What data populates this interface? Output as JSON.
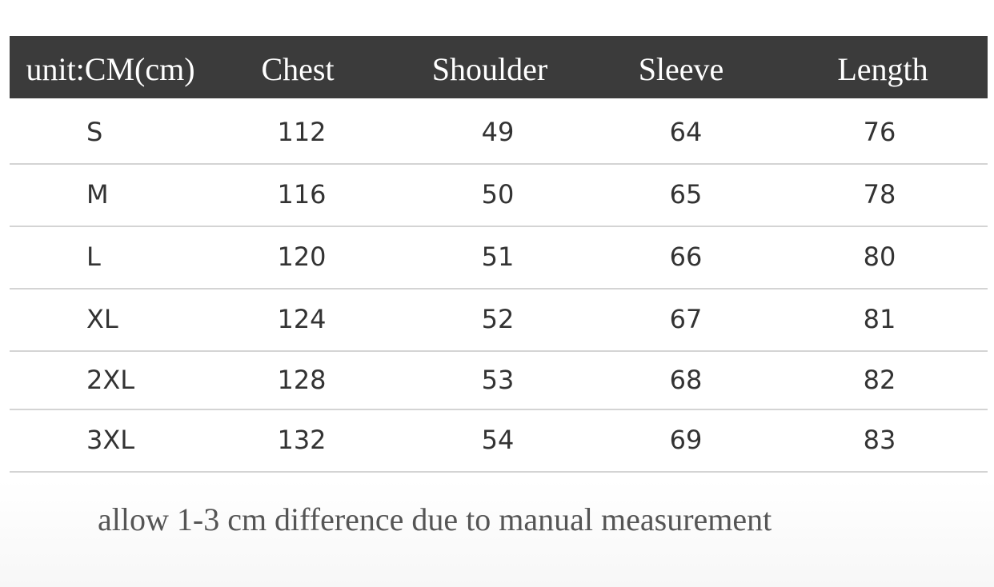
{
  "table": {
    "header": [
      "unit:CM(cm)",
      "Chest",
      "Shoulder",
      "Sleeve",
      "Length"
    ],
    "rows": [
      [
        "S",
        112,
        49,
        64,
        76
      ],
      [
        "M",
        116,
        50,
        65,
        78
      ],
      [
        "L",
        120,
        51,
        66,
        80
      ],
      [
        "XL",
        124,
        52,
        67,
        81
      ],
      [
        "2XL",
        128,
        53,
        68,
        82
      ],
      [
        "3XL",
        132,
        54,
        69,
        83
      ]
    ]
  },
  "note": "allow 1-3 cm difference due to manual measurement"
}
